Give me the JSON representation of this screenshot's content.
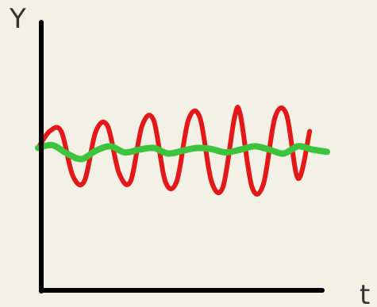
{
  "chart_data": {
    "type": "line",
    "xlabel": "t",
    "ylabel": "Y",
    "xlim": [
      0,
      10
    ],
    "ylim": [
      -2,
      2
    ],
    "grid": false,
    "legend": "none",
    "series": [
      {
        "color": "#e31818",
        "x": [
          0,
          0.4,
          0.8,
          1.2,
          1.6,
          2.0,
          2.4,
          2.8,
          3.2,
          3.6,
          4.0,
          4.4,
          4.8,
          5.2,
          5.6,
          6.0,
          6.4,
          6.8,
          7.0,
          7.4,
          7.8,
          8.2,
          8.6,
          9.0,
          9.4
        ],
        "values": [
          0.05,
          0.35,
          0.35,
          -0.45,
          -0.55,
          0.35,
          0.45,
          -0.4,
          -0.55,
          0.45,
          0.55,
          -0.55,
          -0.55,
          0.55,
          0.6,
          -0.55,
          -0.65,
          0.6,
          0.65,
          -0.65,
          -0.6,
          0.6,
          0.65,
          -0.5,
          0.35
        ]
      },
      {
        "color": "#3cc43c",
        "x": [
          0,
          0.5,
          1.0,
          1.5,
          2.0,
          2.5,
          3.0,
          3.5,
          4.0,
          4.5,
          5.0,
          5.5,
          6.0,
          6.5,
          7.0,
          7.5,
          8.0,
          8.5,
          9.0,
          9.5,
          10.0
        ],
        "values": [
          0.05,
          0.1,
          -0.05,
          -0.15,
          0.0,
          0.08,
          -0.03,
          0.02,
          0.05,
          -0.05,
          0.0,
          0.05,
          0.03,
          -0.03,
          0.02,
          0.08,
          0.02,
          -0.05,
          0.08,
          0.02,
          -0.02
        ]
      }
    ]
  }
}
